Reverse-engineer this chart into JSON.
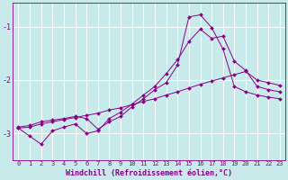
{
  "background_color": "#c8eaea",
  "grid_color": "#ffffff",
  "line_color": "#880088",
  "marker": "D",
  "marker_size": 2.0,
  "xlabel": "Windchill (Refroidissement éolien,°C)",
  "xlabel_fontsize": 6,
  "xtick_fontsize": 5,
  "ytick_fontsize": 6,
  "xlim": [
    -0.5,
    23.5
  ],
  "ylim": [
    -3.5,
    -0.55
  ],
  "yticks": [
    -3,
    -2,
    -1
  ],
  "lines": [
    {
      "x": [
        0,
        1,
        2,
        3,
        4,
        5,
        6,
        7,
        8,
        9,
        10,
        11,
        12,
        13,
        14,
        15,
        16,
        17,
        18,
        19,
        20,
        21,
        22,
        23
      ],
      "y": [
        -2.9,
        -2.88,
        -2.82,
        -2.78,
        -2.74,
        -2.7,
        -2.66,
        -2.62,
        -2.56,
        -2.52,
        -2.46,
        -2.4,
        -2.35,
        -2.28,
        -2.22,
        -2.15,
        -2.08,
        -2.02,
        -1.96,
        -1.9,
        -1.84,
        -2.0,
        -2.05,
        -2.1
      ]
    },
    {
      "x": [
        0,
        1,
        2,
        3,
        4,
        5,
        6,
        7,
        8,
        9,
        10,
        11,
        12,
        13,
        14,
        15,
        16,
        17,
        18,
        19,
        20,
        21,
        22,
        23
      ],
      "y": [
        -2.9,
        -3.05,
        -3.2,
        -2.95,
        -2.88,
        -2.82,
        -3.0,
        -2.95,
        -2.72,
        -2.6,
        -2.45,
        -2.28,
        -2.12,
        -1.88,
        -1.62,
        -1.28,
        -1.05,
        -1.22,
        -1.18,
        -1.65,
        -1.82,
        -2.12,
        -2.18,
        -2.22
      ]
    },
    {
      "x": [
        0,
        1,
        2,
        3,
        4,
        5,
        6,
        7,
        8,
        9,
        10,
        11,
        12,
        13,
        14,
        15,
        16,
        17,
        18,
        19,
        20,
        21,
        22,
        23
      ],
      "y": [
        -2.88,
        -2.85,
        -2.78,
        -2.75,
        -2.72,
        -2.68,
        -2.72,
        -2.92,
        -2.78,
        -2.68,
        -2.5,
        -2.35,
        -2.18,
        -2.05,
        -1.72,
        -0.82,
        -0.78,
        -1.02,
        -1.42,
        -2.12,
        -2.22,
        -2.28,
        -2.32,
        -2.35
      ]
    }
  ]
}
